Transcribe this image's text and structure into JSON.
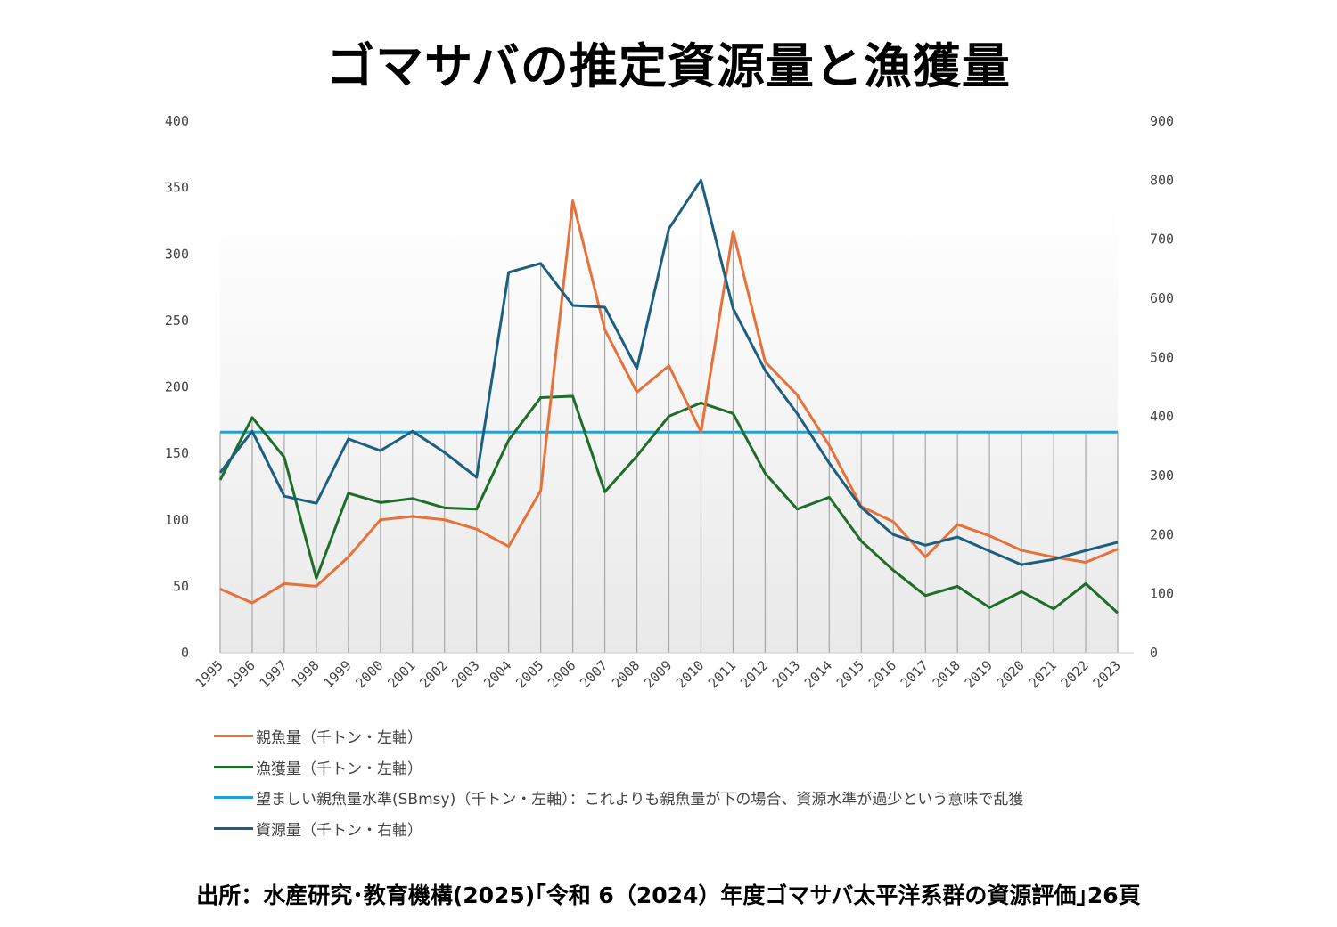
{
  "title": "ゴマサバの推定資源量と漁獲量",
  "source": "出所：水産研究･教育機構(2025)｢令和 6（2024）年度ゴマサバ太平洋系群の資源評価｣26頁",
  "chart_data": {
    "type": "line",
    "title": "ゴマサバの推定資源量と漁獲量",
    "x": [
      1995,
      1996,
      1997,
      1998,
      1999,
      2000,
      2001,
      2002,
      2003,
      2004,
      2005,
      2006,
      2007,
      2008,
      2009,
      2010,
      2011,
      2012,
      2013,
      2014,
      2015,
      2016,
      2017,
      2018,
      2019,
      2020,
      2021,
      2022,
      2023
    ],
    "left_axis": {
      "ylim": [
        0,
        400
      ],
      "ticks": [
        0,
        50,
        100,
        150,
        200,
        250,
        300,
        350,
        400
      ]
    },
    "right_axis": {
      "ylim": [
        0,
        900
      ],
      "ticks": [
        0,
        100,
        200,
        300,
        400,
        500,
        600,
        700,
        800,
        900
      ]
    },
    "grid": false,
    "legend_position": "bottom-left",
    "series": [
      {
        "name": "親魚量（千トン・左軸）",
        "axis": "left",
        "color": "#e8713a",
        "values": [
          48,
          37.5,
          52,
          50,
          72,
          100,
          102.5,
          100,
          93,
          80,
          122,
          340,
          243,
          196,
          216,
          166,
          317,
          219,
          194,
          156,
          110,
          98.5,
          72,
          96.5,
          88,
          77,
          72,
          68,
          78
        ]
      },
      {
        "name": "漁獲量（千トン・左軸）",
        "axis": "left",
        "color": "#1e6e2a",
        "values": [
          130,
          177,
          147,
          56,
          120,
          113,
          116,
          109,
          108,
          160,
          192,
          193,
          121,
          148,
          178,
          188,
          180,
          135,
          108,
          117,
          84,
          62,
          43,
          50,
          34,
          46,
          33,
          52,
          30
        ]
      },
      {
        "name": "望ましい親魚量水準(SBmsy)（千トン・左軸）：これよりも親魚量が下の場合、資源水準が過少という意味で乱獲",
        "axis": "left",
        "color": "#1ea0d8",
        "values": [
          166,
          166,
          166,
          166,
          166,
          166,
          166,
          166,
          166,
          166,
          166,
          166,
          166,
          166,
          166,
          166,
          166,
          166,
          166,
          166,
          166,
          166,
          166,
          166,
          166,
          166,
          166,
          166,
          166
        ]
      },
      {
        "name": "資源量（千トン・右軸）",
        "axis": "right",
        "color": "#1d5f80",
        "values": [
          305,
          375,
          265,
          253,
          362,
          342,
          375,
          339,
          297,
          644,
          659,
          588,
          585,
          481,
          718,
          800,
          583,
          478,
          405,
          321,
          246,
          200,
          182,
          196,
          172,
          149,
          158,
          173,
          187
        ]
      }
    ]
  }
}
